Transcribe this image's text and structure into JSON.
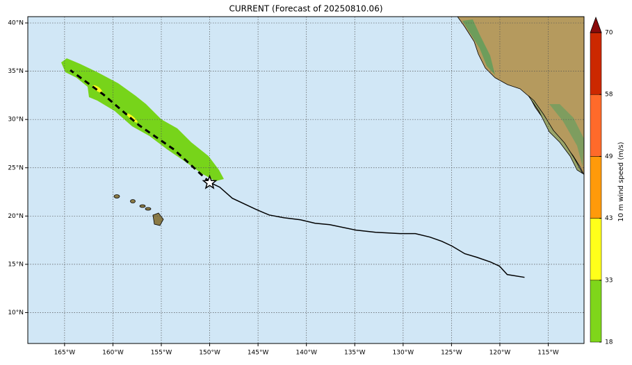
{
  "title": "CURRENT (Forecast of 20250810.06)",
  "map": {
    "lon_range": [
      -168.8,
      -111.3
    ],
    "lat_range": [
      6.8,
      40.65
    ],
    "lon_ticks": [
      {
        "value": -165,
        "label": "165°W"
      },
      {
        "value": -160,
        "label": "160°W"
      },
      {
        "value": -155,
        "label": "155°W"
      },
      {
        "value": -150,
        "label": "150°W"
      },
      {
        "value": -145,
        "label": "145°W"
      },
      {
        "value": -140,
        "label": "140°W"
      },
      {
        "value": -135,
        "label": "135°W"
      },
      {
        "value": -130,
        "label": "130°W"
      },
      {
        "value": -125,
        "label": "125°W"
      },
      {
        "value": -120,
        "label": "120°W"
      },
      {
        "value": -115,
        "label": "115°W"
      }
    ],
    "lat_ticks": [
      {
        "value": 10,
        "label": "10°N"
      },
      {
        "value": 15,
        "label": "15°N"
      },
      {
        "value": 20,
        "label": "20°N"
      },
      {
        "value": 25,
        "label": "25°N"
      },
      {
        "value": 30,
        "label": "30°N"
      },
      {
        "value": 35,
        "label": "35°N"
      },
      {
        "value": 40,
        "label": "40°N"
      }
    ],
    "past_track": {
      "lon": [
        -150.0,
        -148.96,
        -147.66,
        -145.22,
        -143.85,
        -142.34,
        -140.61,
        -139.1,
        -137.59,
        -134.86,
        -132.84,
        -130.32,
        -128.74,
        -127.23,
        -126.01,
        -124.93,
        -123.63,
        -122.41,
        -120.97,
        -120.04,
        -119.24,
        -117.45
      ],
      "lat": [
        23.49,
        22.99,
        21.84,
        20.69,
        20.11,
        19.83,
        19.61,
        19.25,
        19.11,
        18.54,
        18.32,
        18.18,
        18.18,
        17.82,
        17.39,
        16.88,
        16.1,
        15.74,
        15.24,
        14.81,
        13.94,
        13.65
      ]
    },
    "forecast_track": {
      "lon": [
        -150.0,
        -153.7,
        -157.3,
        -161.0,
        -164.4
      ],
      "lat": [
        23.5,
        26.9,
        29.4,
        32.6,
        35.1
      ]
    },
    "storm_position": {
      "lon": -150.0,
      "lat": 23.45
    }
  },
  "colorbar": {
    "label": "10 m wind speed (m/s)",
    "ticks": [
      18,
      33,
      43,
      49,
      58,
      70
    ],
    "colors": [
      "#7fd61a",
      "#ffff1a",
      "#ff9a0a",
      "#ff6a2a",
      "#cc2800"
    ],
    "extend_color": "#8a0b0b"
  }
}
